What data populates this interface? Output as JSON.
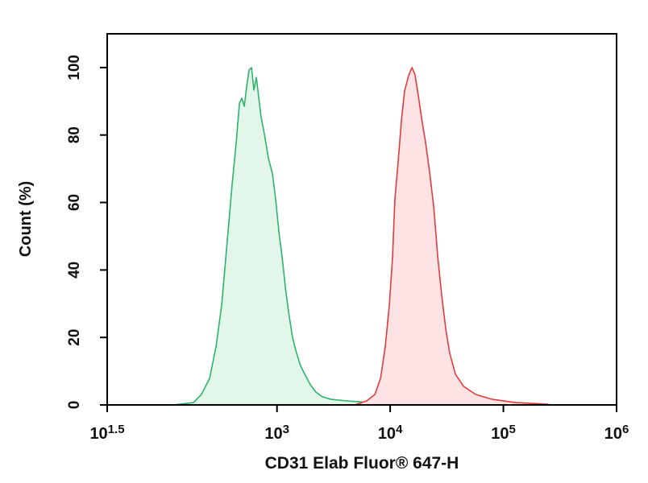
{
  "chart_data": {
    "type": "histogram-overlay",
    "xlabel": "CD31 Elab Fluor® 647-H",
    "ylabel": "Count (%)",
    "xscale": "log",
    "xlim": [
      31.62,
      1000000
    ],
    "xticks": [
      {
        "value": 31.62,
        "label": "10",
        "exponent": "1.5"
      },
      {
        "value": 1000,
        "label": "10",
        "exponent": "3"
      },
      {
        "value": 10000,
        "label": "10",
        "exponent": "4"
      },
      {
        "value": 100000,
        "label": "10",
        "exponent": "5"
      },
      {
        "value": 1000000,
        "label": "10",
        "exponent": "6"
      }
    ],
    "ylim": [
      0,
      110
    ],
    "yticks": [
      0,
      20,
      40,
      60,
      80,
      100
    ],
    "series": [
      {
        "color": "#2db36b",
        "fill": "#e3f6ea",
        "x": [
          121,
          183,
          215,
          254,
          290,
          325,
          364,
          402,
          436,
          466,
          489,
          514,
          540,
          567,
          596,
          625,
          658,
          690,
          724,
          774,
          840,
          912,
          975,
          1040,
          1110,
          1190,
          1270,
          1370,
          1490,
          1620,
          1760,
          1970,
          2210,
          2520,
          2970,
          4120,
          6740,
          11000
        ],
        "values": [
          0,
          0.7,
          3.1,
          7.9,
          17.5,
          29.7,
          48.8,
          65.6,
          77.5,
          89.5,
          90.9,
          88.5,
          94.5,
          99.3,
          100,
          93.3,
          97.1,
          91.1,
          85.2,
          80.4,
          73.2,
          68.4,
          60.8,
          51.2,
          44.0,
          34.4,
          27.3,
          20.1,
          15.3,
          11.5,
          9.1,
          6.0,
          3.8,
          2.4,
          1.7,
          1.2,
          0.7,
          0.2
        ]
      },
      {
        "color": "#e03c3c",
        "fill": "#fde3e3",
        "x": [
          4860,
          6210,
          7320,
          8220,
          9060,
          9840,
          10500,
          11000,
          11800,
          12600,
          13400,
          14600,
          15600,
          16600,
          17700,
          19000,
          20600,
          22300,
          24300,
          26300,
          28600,
          31000,
          33600,
          37700,
          44500,
          56900,
          78900,
          129000,
          249000
        ],
        "values": [
          0,
          1.2,
          3.1,
          7.9,
          17.5,
          29.7,
          44.0,
          60.8,
          72.7,
          84.7,
          93.1,
          97.8,
          100,
          97.8,
          91.9,
          84.7,
          77.5,
          69.1,
          58.4,
          44.0,
          32.1,
          22.5,
          15.3,
          9.1,
          5.5,
          3.1,
          1.7,
          0.7,
          0.2
        ]
      }
    ]
  }
}
